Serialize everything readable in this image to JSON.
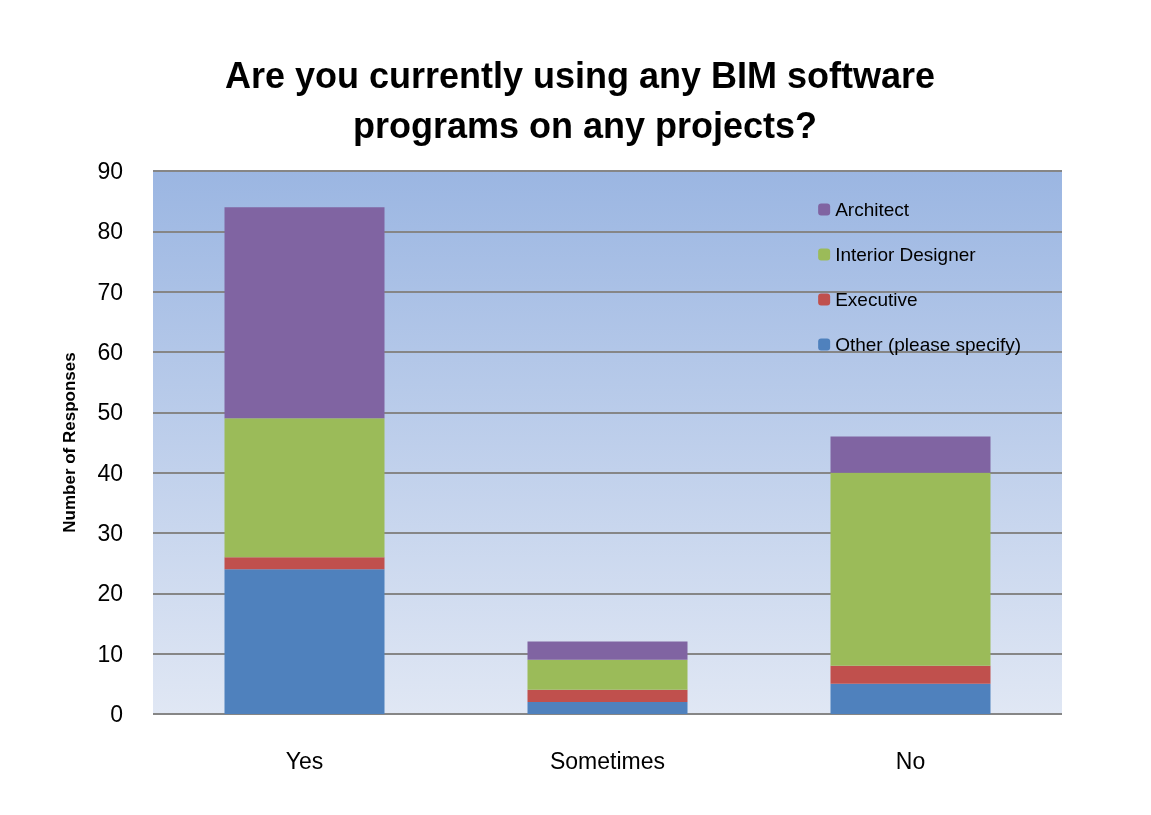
{
  "chart_data": {
    "type": "bar",
    "title": "Are you currently using any BIM software programs on any projects?",
    "ylabel": "Number of Responses",
    "categories": [
      "Yes",
      "Sometimes",
      "No"
    ],
    "stacked": true,
    "series": [
      {
        "name": "Other (please specify)",
        "color": "#4f81bd",
        "values": [
          24,
          2,
          5
        ]
      },
      {
        "name": "Executive",
        "color": "#c0504d",
        "values": [
          2,
          2,
          3
        ]
      },
      {
        "name": "Interior Designer",
        "color": "#9bbb59",
        "values": [
          23,
          5,
          32
        ]
      },
      {
        "name": "Architect",
        "color": "#8064a2",
        "values": [
          35,
          3,
          6
        ]
      }
    ],
    "ylim": [
      0,
      90
    ],
    "yticks": [
      0,
      10,
      20,
      30,
      40,
      50,
      60,
      70,
      80,
      90
    ],
    "grid": "y",
    "legend": "top right"
  }
}
